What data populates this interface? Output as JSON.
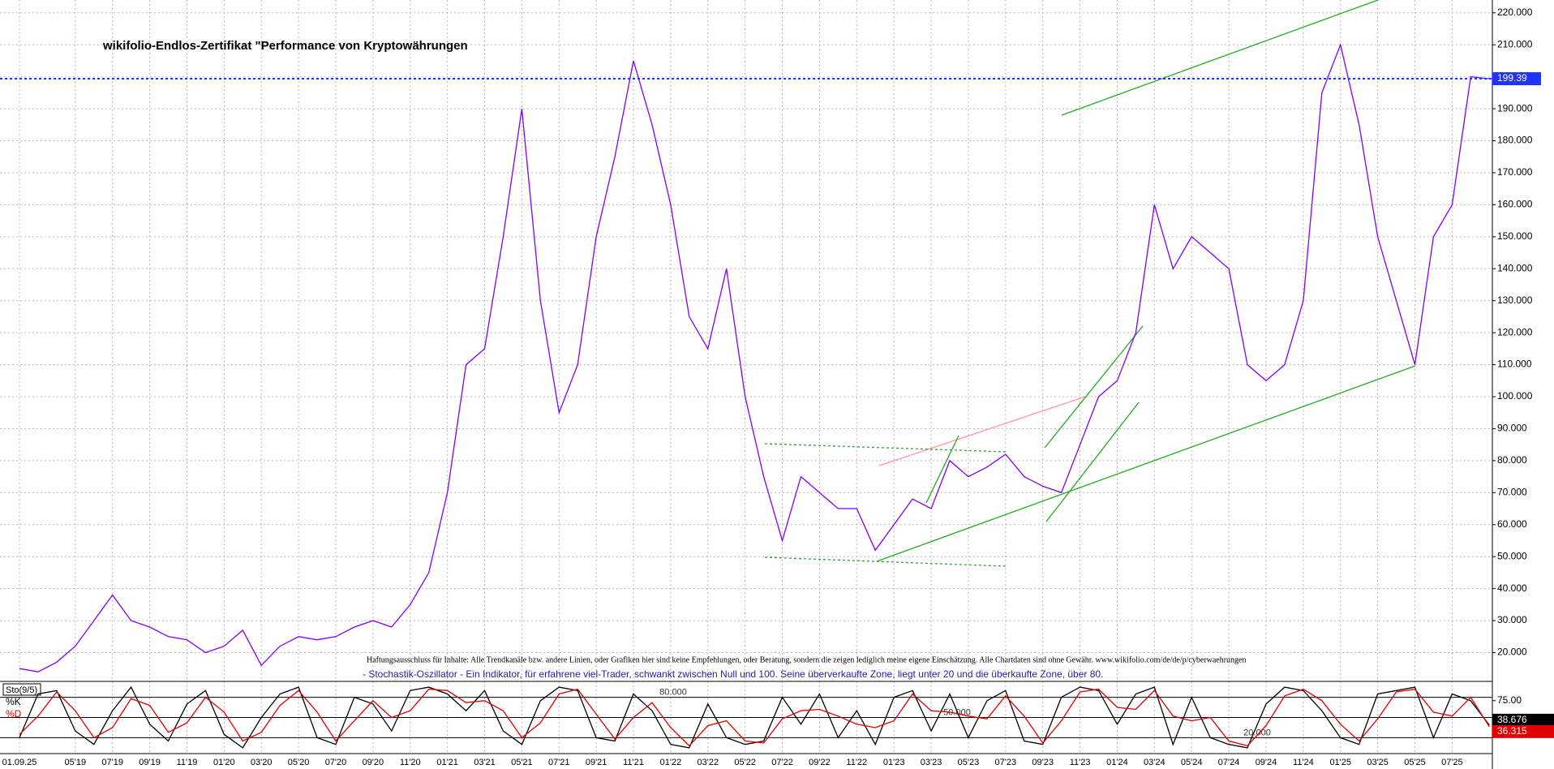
{
  "chart_data": [
    {
      "type": "line",
      "title": "wikifolio-Endlos-Zertifikat \"Performance von Kryptowährungen",
      "annotation": "Haftungsausschluss für Inhalte: Alle Trendkanäle bzw. andere Linien, oder Grafiken hier sind keine Empfehlungen, oder Beratung, sondern die zeigen lediglich meine eigene Einschätzung. Alle Chartdaten sind ohne Gewähr.  www.wikifolio.com/de/de/p/cyberwaehrungen",
      "categories": [
        "01.09.25",
        null,
        null,
        "05'19",
        null,
        "07'19",
        null,
        "09'19",
        null,
        "11'19",
        null,
        "01'20",
        null,
        "03'20",
        null,
        "05'20",
        null,
        "07'20",
        null,
        "09'20",
        null,
        "11'20",
        null,
        "01'21",
        null,
        "03'21",
        null,
        "05'21",
        null,
        "07'21",
        null,
        "09'21",
        null,
        "11'21",
        null,
        "01'22",
        null,
        "03'22",
        null,
        "05'22",
        null,
        "07'22",
        null,
        "09'22",
        null,
        "11'22",
        null,
        "01'23",
        null,
        "03'23",
        null,
        "05'23",
        null,
        "07'23",
        null,
        "09'23",
        null,
        "11'23",
        null,
        "01'24",
        null,
        "03'24",
        null,
        "05'24",
        null,
        "07'24",
        null,
        "09'24",
        null,
        "11'24",
        null,
        "01'25",
        null,
        "03'25",
        null,
        "05'25",
        null,
        "07'25",
        null,
        null
      ],
      "series": [
        {
          "color": "#7f00ff",
          "values": [
            15,
            14,
            17,
            22,
            30,
            38,
            30,
            28,
            25,
            24,
            20,
            22,
            27,
            16,
            22,
            25,
            24,
            25,
            28,
            30,
            28,
            35,
            45,
            70,
            110,
            115,
            150,
            190,
            130,
            95,
            110,
            150,
            175,
            205,
            185,
            160,
            125,
            115,
            140,
            100,
            75,
            55,
            75,
            70,
            65,
            65,
            52,
            60,
            68,
            65,
            80,
            75,
            78,
            82,
            75,
            72,
            70,
            85,
            100,
            105,
            120,
            160,
            140,
            150,
            145,
            140,
            110,
            105,
            110,
            130,
            195,
            210,
            185,
            150,
            130,
            110,
            150,
            160,
            200,
            199.39
          ]
        }
      ],
      "ylim": [
        11,
        224
      ],
      "yticks": [
        {
          "value": 20,
          "label": "20.000"
        },
        {
          "value": 30,
          "label": "30.000"
        },
        {
          "value": 40,
          "label": "40.000"
        },
        {
          "value": 50,
          "label": "50.000"
        },
        {
          "value": 60,
          "label": "60.000"
        },
        {
          "value": 70,
          "label": "70.000"
        },
        {
          "value": 80,
          "label": "80.000"
        },
        {
          "value": 90,
          "label": "90.000"
        },
        {
          "value": 100,
          "label": "100.000"
        },
        {
          "value": 110,
          "label": "110.000"
        },
        {
          "value": 120,
          "label": "120.000"
        },
        {
          "value": 130,
          "label": "130.000"
        },
        {
          "value": 140,
          "label": "140.000"
        },
        {
          "value": 150,
          "label": "150.000"
        },
        {
          "value": 160,
          "label": "160.000"
        },
        {
          "value": 170,
          "label": "170.000"
        },
        {
          "value": 180,
          "label": "180.000"
        },
        {
          "value": 190,
          "label": "190.000"
        },
        {
          "value": 200,
          "label": "200.000"
        },
        {
          "value": 210,
          "label": "210.000"
        },
        {
          "value": 220,
          "label": "220.000"
        }
      ],
      "grid": true,
      "current_line": {
        "value": 199.39,
        "label": "199.39",
        "color": "#2233ff"
      }
    },
    {
      "type": "line",
      "title": "Sto(9/5)",
      "subtitle": "- Stochastik-Oszillator - Ein Indikator, für erfahrene viel-Trader, schwankt zwischen Null und 100. Seine überverkaufte Zone, liegt unter 20 und die überkaufte Zone, über 80.",
      "series": [
        {
          "name": "%K",
          "color": "#000000",
          "values": [
            20,
            85,
            90,
            30,
            10,
            60,
            95,
            40,
            15,
            70,
            90,
            25,
            5,
            50,
            85,
            95,
            20,
            10,
            80,
            70,
            30,
            90,
            95,
            85,
            60,
            90,
            30,
            10,
            75,
            95,
            90,
            20,
            15,
            85,
            60,
            10,
            5,
            70,
            20,
            10,
            15,
            80,
            40,
            85,
            20,
            60,
            10,
            80,
            90,
            30,
            85,
            20,
            75,
            90,
            15,
            10,
            80,
            95,
            90,
            40,
            85,
            95,
            10,
            80,
            20,
            10,
            5,
            70,
            95,
            90,
            60,
            20,
            10,
            85,
            90,
            95,
            20,
            85,
            75,
            38.676
          ],
          "current": {
            "value": 38.676,
            "label": "38.676"
          }
        },
        {
          "name": "%D",
          "color": "#e00000",
          "values": [
            25,
            52,
            88,
            60,
            20,
            35,
            78,
            68,
            28,
            42,
            80,
            58,
            15,
            28,
            68,
            90,
            58,
            15,
            45,
            75,
            50,
            60,
            92,
            90,
            72,
            75,
            60,
            20,
            42,
            85,
            92,
            55,
            18,
            50,
            72,
            35,
            8,
            38,
            45,
            15,
            12,
            48,
            60,
            62,
            52,
            40,
            35,
            45,
            85,
            60,
            58,
            52,
            48,
            82,
            52,
            12,
            45,
            88,
            92,
            65,
            62,
            90,
            52,
            45,
            50,
            15,
            8,
            38,
            82,
            92,
            75,
            40,
            15,
            48,
            88,
            92,
            58,
            52,
            80,
            36.315
          ],
          "current": {
            "value": 36.315,
            "label": "36.315"
          }
        }
      ],
      "ylim": [
        0,
        100
      ],
      "yticks": [
        {
          "value": 75,
          "label": "75.00"
        }
      ],
      "levels": [
        {
          "value": 80,
          "label": "80.000"
        },
        {
          "value": 50,
          "label": "50.000"
        },
        {
          "value": 20,
          "label": "20.000"
        }
      ]
    }
  ]
}
